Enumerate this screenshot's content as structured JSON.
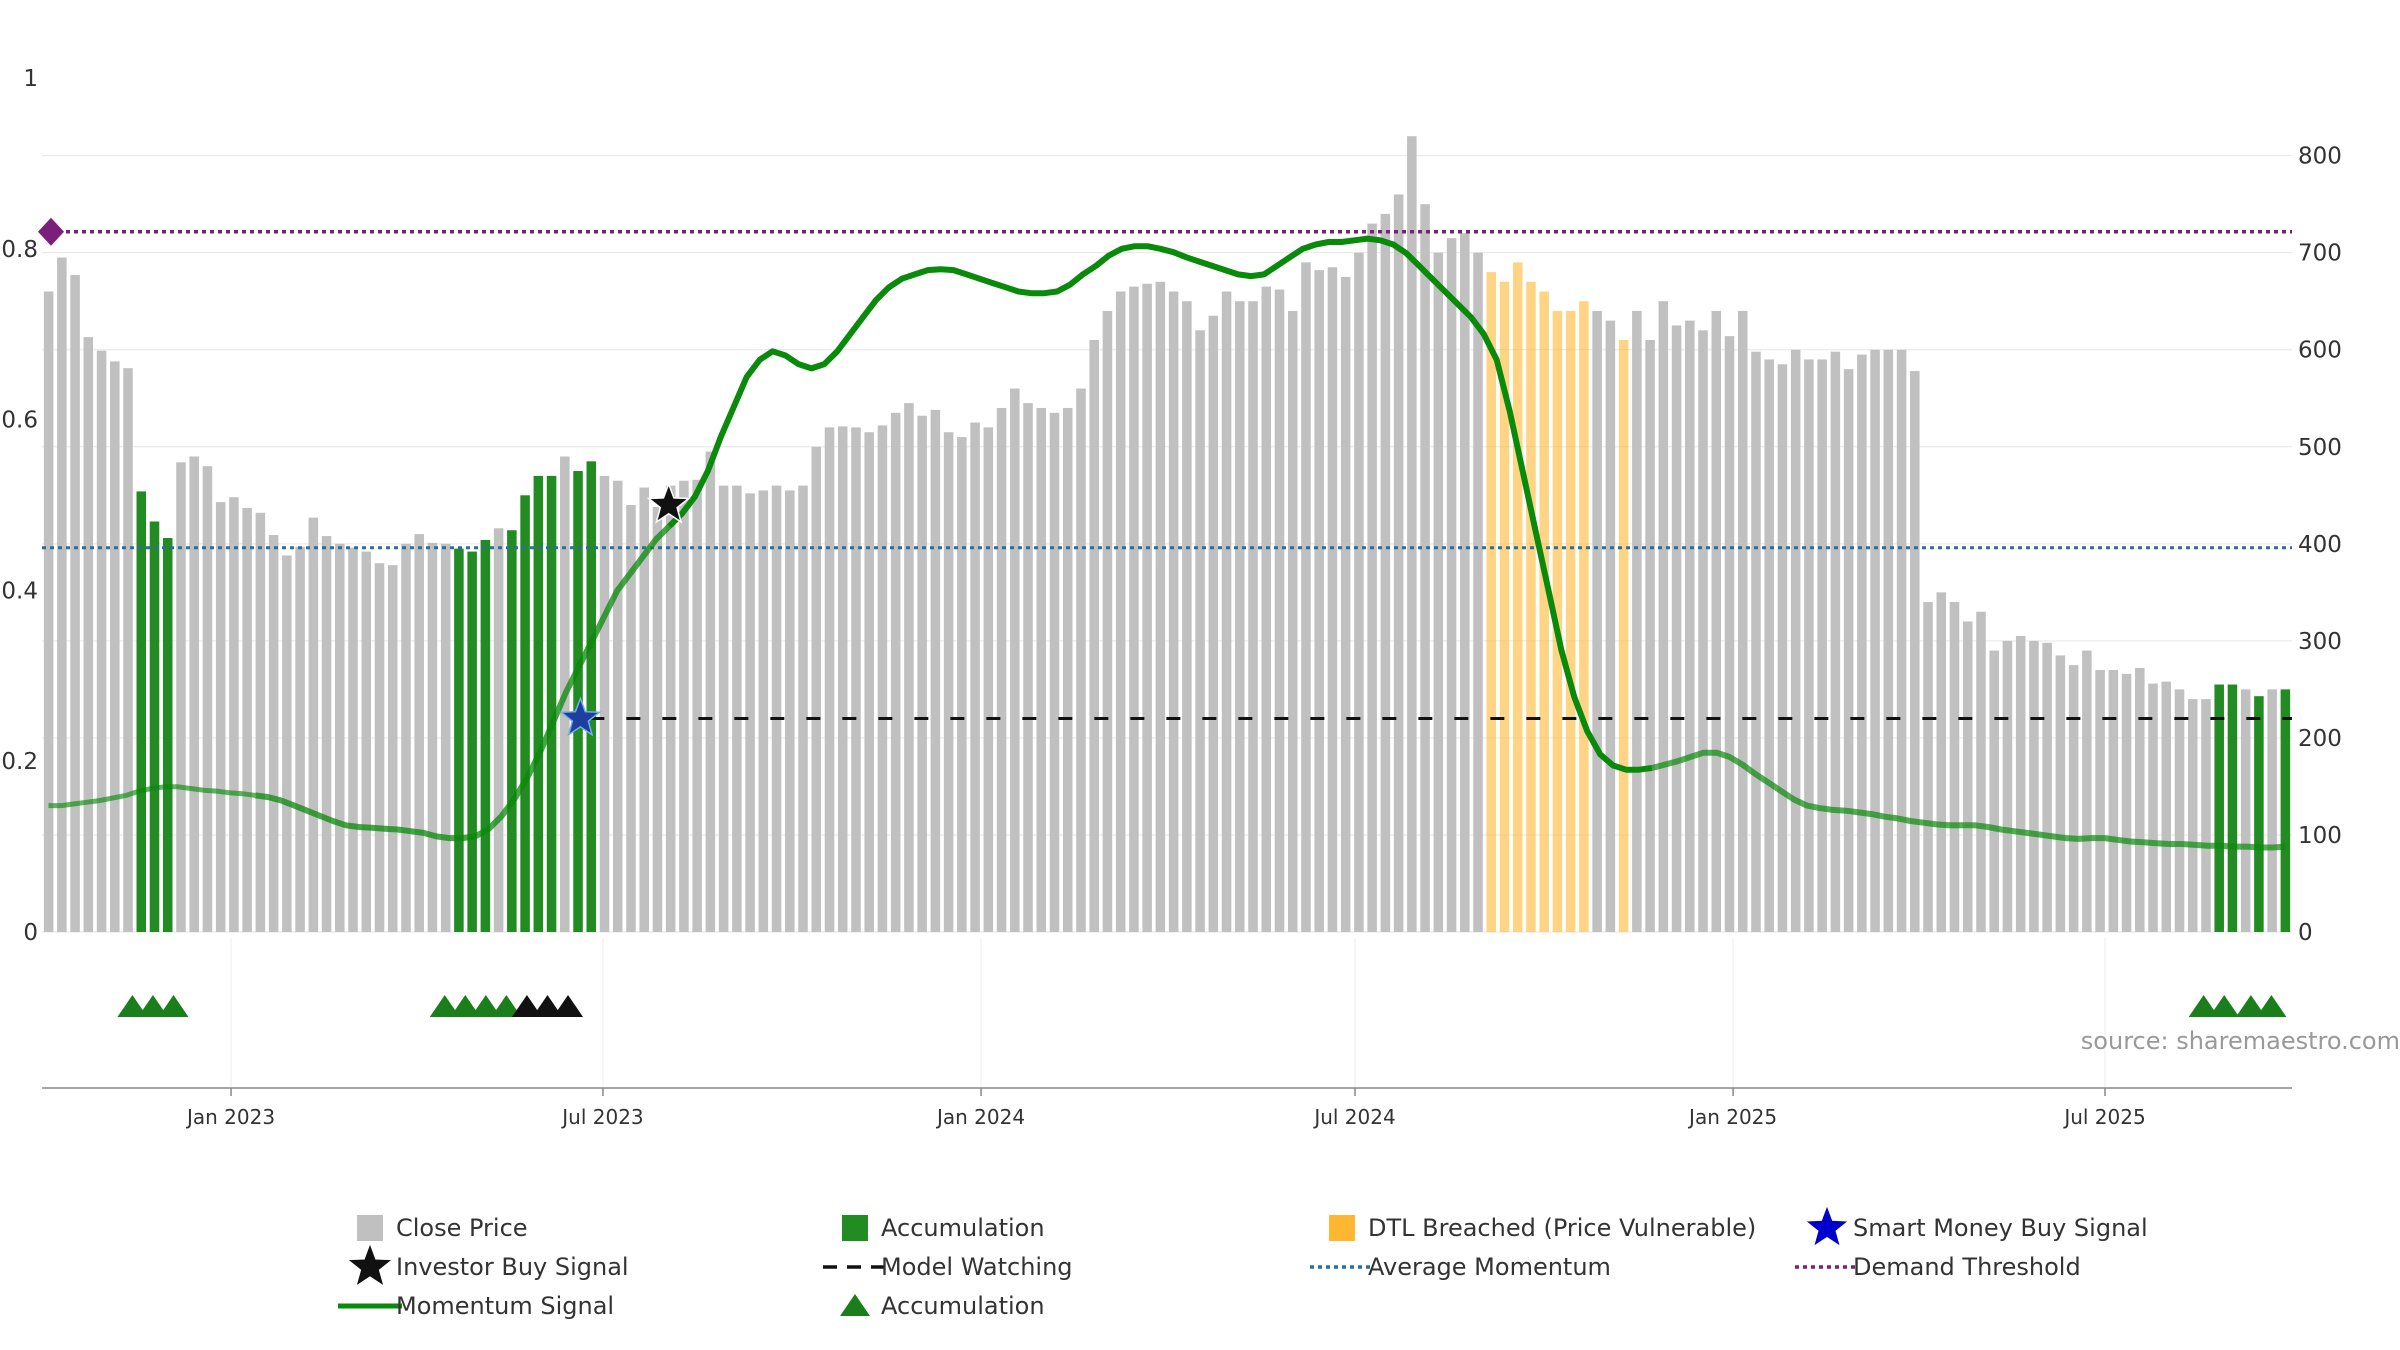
{
  "chart_data": {
    "type": "bar",
    "source_note": "source: sharemaestro.com",
    "x_ticks": [
      "Jan 2023",
      "Jul 2023",
      "Jan 2024",
      "Jul 2024",
      "Jan 2025",
      "Jul 2025"
    ],
    "left_axis": {
      "ylim": [
        0,
        1
      ],
      "ticks": [
        "0",
        "0.2",
        "0.4",
        "0.6",
        "0.8",
        "1"
      ]
    },
    "right_axis": {
      "ylim": [
        0,
        880
      ],
      "ticks": [
        "0",
        "100",
        "200",
        "300",
        "400",
        "500",
        "600",
        "700",
        "800"
      ]
    },
    "date_range": [
      "2022-10-01",
      "2025-09-30"
    ],
    "series": [
      {
        "name": "Close Price",
        "axis": "right",
        "color": "#c0c0c0",
        "values": [
          660,
          695,
          677,
          613,
          599,
          588,
          581,
          454,
          423,
          406,
          484,
          490,
          480,
          443,
          448,
          437,
          432,
          409,
          388,
          397,
          427,
          408,
          400,
          396,
          392,
          380,
          378,
          400,
          410,
          401,
          400,
          395,
          392,
          404,
          416,
          414,
          450,
          470,
          470,
          490,
          475,
          485,
          470,
          465,
          440,
          458,
          438,
          460,
          465,
          466,
          495,
          460,
          460,
          452,
          455,
          460,
          455,
          460,
          500,
          520,
          521,
          520,
          515,
          522,
          535,
          545,
          532,
          538,
          515,
          510,
          525,
          520,
          540,
          560,
          545,
          540,
          535,
          540,
          560,
          610,
          640,
          660,
          665,
          668,
          670,
          660,
          650,
          620,
          635,
          660,
          650,
          650,
          665,
          662,
          640,
          690,
          682,
          685,
          675,
          700,
          730,
          740,
          760,
          820,
          750,
          700,
          715,
          720,
          700,
          680,
          670,
          690,
          670,
          660,
          640,
          640,
          650,
          640,
          630,
          610,
          640,
          610,
          650,
          625,
          630,
          620,
          640,
          614,
          640,
          598,
          590,
          585,
          600,
          590,
          590,
          598,
          580,
          595,
          600,
          600,
          600,
          578,
          340,
          350,
          340,
          320,
          330,
          290,
          300,
          305,
          300,
          298,
          285,
          275,
          290,
          270,
          270,
          266,
          272,
          256,
          258,
          250,
          240,
          240,
          255,
          255,
          250,
          243,
          250,
          250
        ]
      },
      {
        "name": "Accumulation",
        "axis": "right",
        "color": "#228b22"
      },
      {
        "name": "DTL Breached (Price Vulnerable)",
        "axis": "right",
        "color": "#ffb732"
      },
      {
        "name": "Momentum Signal",
        "axis": "left",
        "color": "#0a8a0a",
        "values": [
          0.148,
          0.148,
          0.15,
          0.152,
          0.154,
          0.157,
          0.16,
          0.165,
          0.168,
          0.17,
          0.17,
          0.168,
          0.166,
          0.165,
          0.163,
          0.162,
          0.16,
          0.158,
          0.154,
          0.148,
          0.142,
          0.136,
          0.13,
          0.125,
          0.123,
          0.122,
          0.121,
          0.12,
          0.118,
          0.116,
          0.112,
          0.11,
          0.11,
          0.112,
          0.12,
          0.135,
          0.155,
          0.18,
          0.21,
          0.245,
          0.28,
          0.31,
          0.34,
          0.37,
          0.4,
          0.42,
          0.44,
          0.46,
          0.475,
          0.49,
          0.51,
          0.54,
          0.58,
          0.615,
          0.65,
          0.67,
          0.68,
          0.675,
          0.665,
          0.66,
          0.665,
          0.68,
          0.7,
          0.72,
          0.74,
          0.755,
          0.765,
          0.77,
          0.775,
          0.776,
          0.775,
          0.77,
          0.765,
          0.76,
          0.755,
          0.75,
          0.748,
          0.748,
          0.75,
          0.758,
          0.77,
          0.78,
          0.792,
          0.8,
          0.803,
          0.803,
          0.8,
          0.796,
          0.79,
          0.785,
          0.78,
          0.775,
          0.77,
          0.768,
          0.77,
          0.78,
          0.79,
          0.8,
          0.805,
          0.808,
          0.808,
          0.81,
          0.812,
          0.81,
          0.805,
          0.795,
          0.78,
          0.765,
          0.75,
          0.735,
          0.72,
          0.7,
          0.67,
          0.61,
          0.54,
          0.47,
          0.4,
          0.33,
          0.275,
          0.235,
          0.208,
          0.195,
          0.19,
          0.19,
          0.192,
          0.196,
          0.2,
          0.205,
          0.21,
          0.21,
          0.205,
          0.196,
          0.185,
          0.175,
          0.165,
          0.155,
          0.148,
          0.145,
          0.143,
          0.142,
          0.14,
          0.138,
          0.135,
          0.133,
          0.13,
          0.128,
          0.126,
          0.125,
          0.125,
          0.125,
          0.123,
          0.12,
          0.118,
          0.116,
          0.114,
          0.112,
          0.11,
          0.109,
          0.11,
          0.11,
          0.108,
          0.106,
          0.105,
          0.104,
          0.103,
          0.103,
          0.102,
          0.101,
          0.101,
          0.1,
          0.1,
          0.099,
          0.099,
          0.1
        ]
      },
      {
        "name": "Average Momentum",
        "axis": "left",
        "color": "#2c6e9b",
        "value": 0.45
      },
      {
        "name": "Demand Threshold",
        "axis": "left",
        "color": "#7a1f7a",
        "value": 0.82
      },
      {
        "name": "Model Watching",
        "axis": "left",
        "color": "#111111",
        "value": 0.25
      },
      {
        "name": "Smart Money Buy Signal",
        "color": "#0000cc",
        "date": "2023-06-20",
        "y": 0.25
      },
      {
        "name": "Investor Buy Signal",
        "color": "#111111",
        "date": "2023-08-02",
        "y": 0.5
      },
      {
        "name": "Accumulation",
        "marker": "triangle",
        "color": "#1a7f1a"
      }
    ],
    "accumulation_bar_dates": [
      "2022-11-15",
      "2022-11-23",
      "2022-12-01",
      "2023-04-18",
      "2023-04-26",
      "2023-05-04",
      "2023-05-12",
      "2023-05-20",
      "2023-05-28",
      "2023-06-05",
      "2023-06-13",
      "2023-06-21",
      "2025-08-20",
      "2025-08-28",
      "2025-09-13",
      "2025-09-21"
    ],
    "dtl_bar_dates": [
      "2024-09-01",
      "2024-09-08",
      "2024-09-15",
      "2024-09-22",
      "2024-09-29",
      "2024-10-06",
      "2024-10-13",
      "2024-10-20",
      "2024-11-07"
    ],
    "accumulation_markers": [
      {
        "date": "2022-11-14",
        "color": "#1a7f1a"
      },
      {
        "date": "2022-11-24",
        "color": "#1a7f1a"
      },
      {
        "date": "2022-12-04",
        "color": "#1a7f1a"
      },
      {
        "date": "2023-04-15",
        "color": "#1a7f1a"
      },
      {
        "date": "2023-04-25",
        "color": "#1a7f1a"
      },
      {
        "date": "2023-05-05",
        "color": "#1a7f1a"
      },
      {
        "date": "2023-05-15",
        "color": "#1a7f1a"
      },
      {
        "date": "2023-05-25",
        "color": "#111111"
      },
      {
        "date": "2023-06-04",
        "color": "#111111"
      },
      {
        "date": "2023-06-14",
        "color": "#111111"
      },
      {
        "date": "2025-08-18",
        "color": "#1a7f1a"
      },
      {
        "date": "2025-08-28",
        "color": "#1a7f1a"
      },
      {
        "date": "2025-09-10",
        "color": "#1a7f1a"
      },
      {
        "date": "2025-09-20",
        "color": "#1a7f1a"
      }
    ],
    "legend_placement": "bottom",
    "legend": [
      [
        "Close Price",
        "Accumulation",
        "DTL Breached (Price Vulnerable)",
        "Smart Money Buy Signal"
      ],
      [
        "Investor Buy Signal",
        "Model Watching",
        "Average Momentum",
        "Demand Threshold"
      ],
      [
        "Momentum Signal",
        "Accumulation"
      ]
    ]
  }
}
